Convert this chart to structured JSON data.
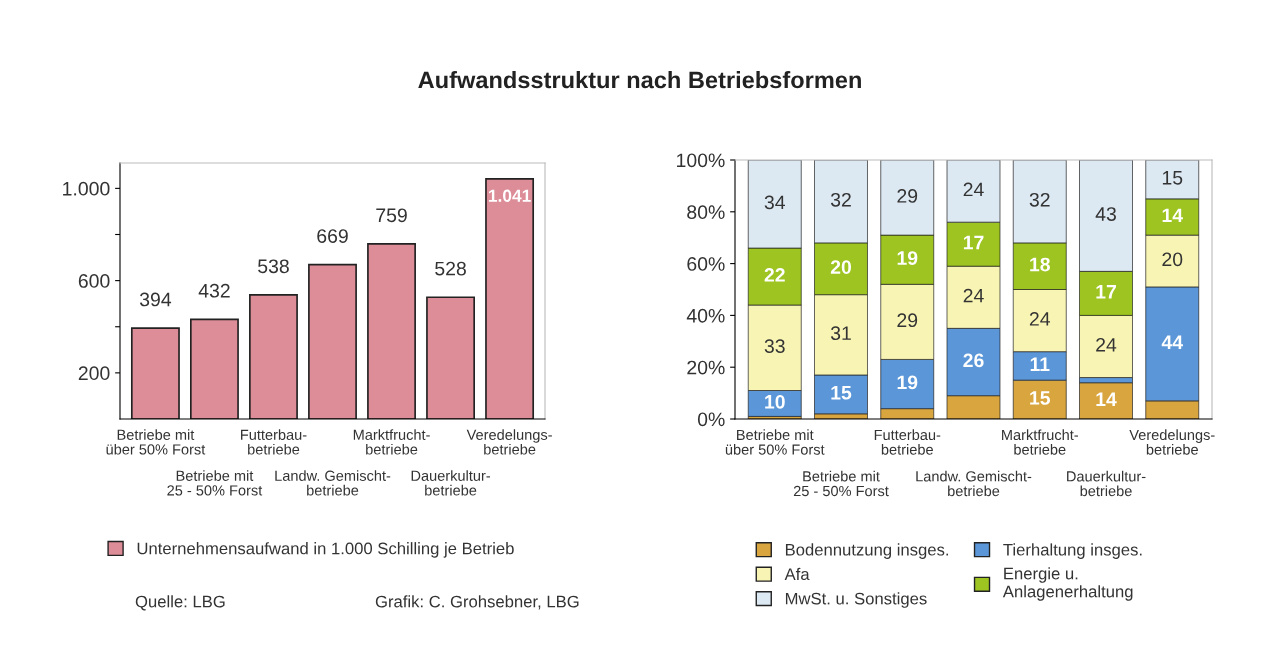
{
  "chart_data": [
    {
      "type": "bar",
      "title": "Aufwandsstruktur nach Betriebsformen",
      "categories": [
        "Betriebe mit\nüber 50% Forst",
        "Betriebe mit\n25 - 50% Forst",
        "Futterbau-\nbetriebe",
        "Landw. Gemischt-\nbetriebe",
        "Marktfrucht-\nbetriebe",
        "Dauerkultur-\nbetriebe",
        "Veredelungs-\nbetriebe"
      ],
      "series": [
        {
          "name": "Unternehmensaufwand in 1.000 Schilling je Betrieb",
          "color": "#dd8d98",
          "values": [
            394,
            432,
            538,
            669,
            759,
            528,
            1041
          ],
          "value_labels": [
            "394",
            "432",
            "538",
            "669",
            "759",
            "528",
            "1.041"
          ]
        }
      ],
      "ylim": [
        0,
        1110
      ],
      "yticks": [
        {
          "value": 200,
          "label": "200"
        },
        {
          "value": 400,
          "label": null
        },
        {
          "value": 600,
          "label": "600"
        },
        {
          "value": 800,
          "label": null
        },
        {
          "value": 1000,
          "label": "1.000"
        }
      ],
      "grid": false,
      "legend": "bottom",
      "annotations": [
        "Quelle: LBG",
        "Grafik: C. Grohsebner, LBG"
      ]
    },
    {
      "type": "bar",
      "stacked": true,
      "categories": [
        "Betriebe mit\nüber 50% Forst",
        "Betriebe mit\n25 - 50% Forst",
        "Futterbau-\nbetriebe",
        "Landw. Gemischt-\nbetriebe",
        "Marktfrucht-\nbetriebe",
        "Dauerkultur-\nbetriebe",
        "Veredelungs-\nbetriebe"
      ],
      "series": [
        {
          "name": "Bodennutzung insges.",
          "color": "#d9a53f",
          "values": [
            1,
            2,
            4,
            9,
            15,
            14,
            7
          ],
          "value_labels": [
            null,
            null,
            null,
            null,
            "15",
            "14",
            null
          ]
        },
        {
          "name": "Tierhaltung insges.",
          "color": "#5b97d8",
          "values": [
            10,
            15,
            19,
            26,
            11,
            2,
            44
          ],
          "value_labels": [
            "10",
            "15",
            "19",
            "26",
            "11",
            null,
            "44"
          ]
        },
        {
          "name": "Afa",
          "color": "#f8f4b4",
          "values": [
            33,
            31,
            29,
            24,
            24,
            24,
            20
          ],
          "value_labels": [
            "33",
            "31",
            "29",
            "24",
            "24",
            "24",
            "20"
          ]
        },
        {
          "name": "Energie u.\nAnlagenerhaltung",
          "color": "#9dc420",
          "values": [
            22,
            20,
            19,
            17,
            18,
            17,
            14
          ],
          "value_labels": [
            "22",
            "20",
            "19",
            "17",
            "18",
            "17",
            "14"
          ]
        },
        {
          "name": "MwSt. u. Sonstiges",
          "color": "#dce8f2",
          "values": [
            34,
            32,
            29,
            24,
            32,
            43,
            15
          ],
          "value_labels": [
            "34",
            "32",
            "29",
            "24",
            "32",
            "43",
            "15"
          ]
        }
      ],
      "ylim": [
        0,
        100
      ],
      "yticks": [
        {
          "value": 0,
          "label": "0%"
        },
        {
          "value": 20,
          "label": "20%"
        },
        {
          "value": 40,
          "label": "40%"
        },
        {
          "value": 60,
          "label": "60%"
        },
        {
          "value": 80,
          "label": "80%"
        },
        {
          "value": 100,
          "label": "100%"
        }
      ],
      "grid": false,
      "legend": "bottom"
    }
  ]
}
